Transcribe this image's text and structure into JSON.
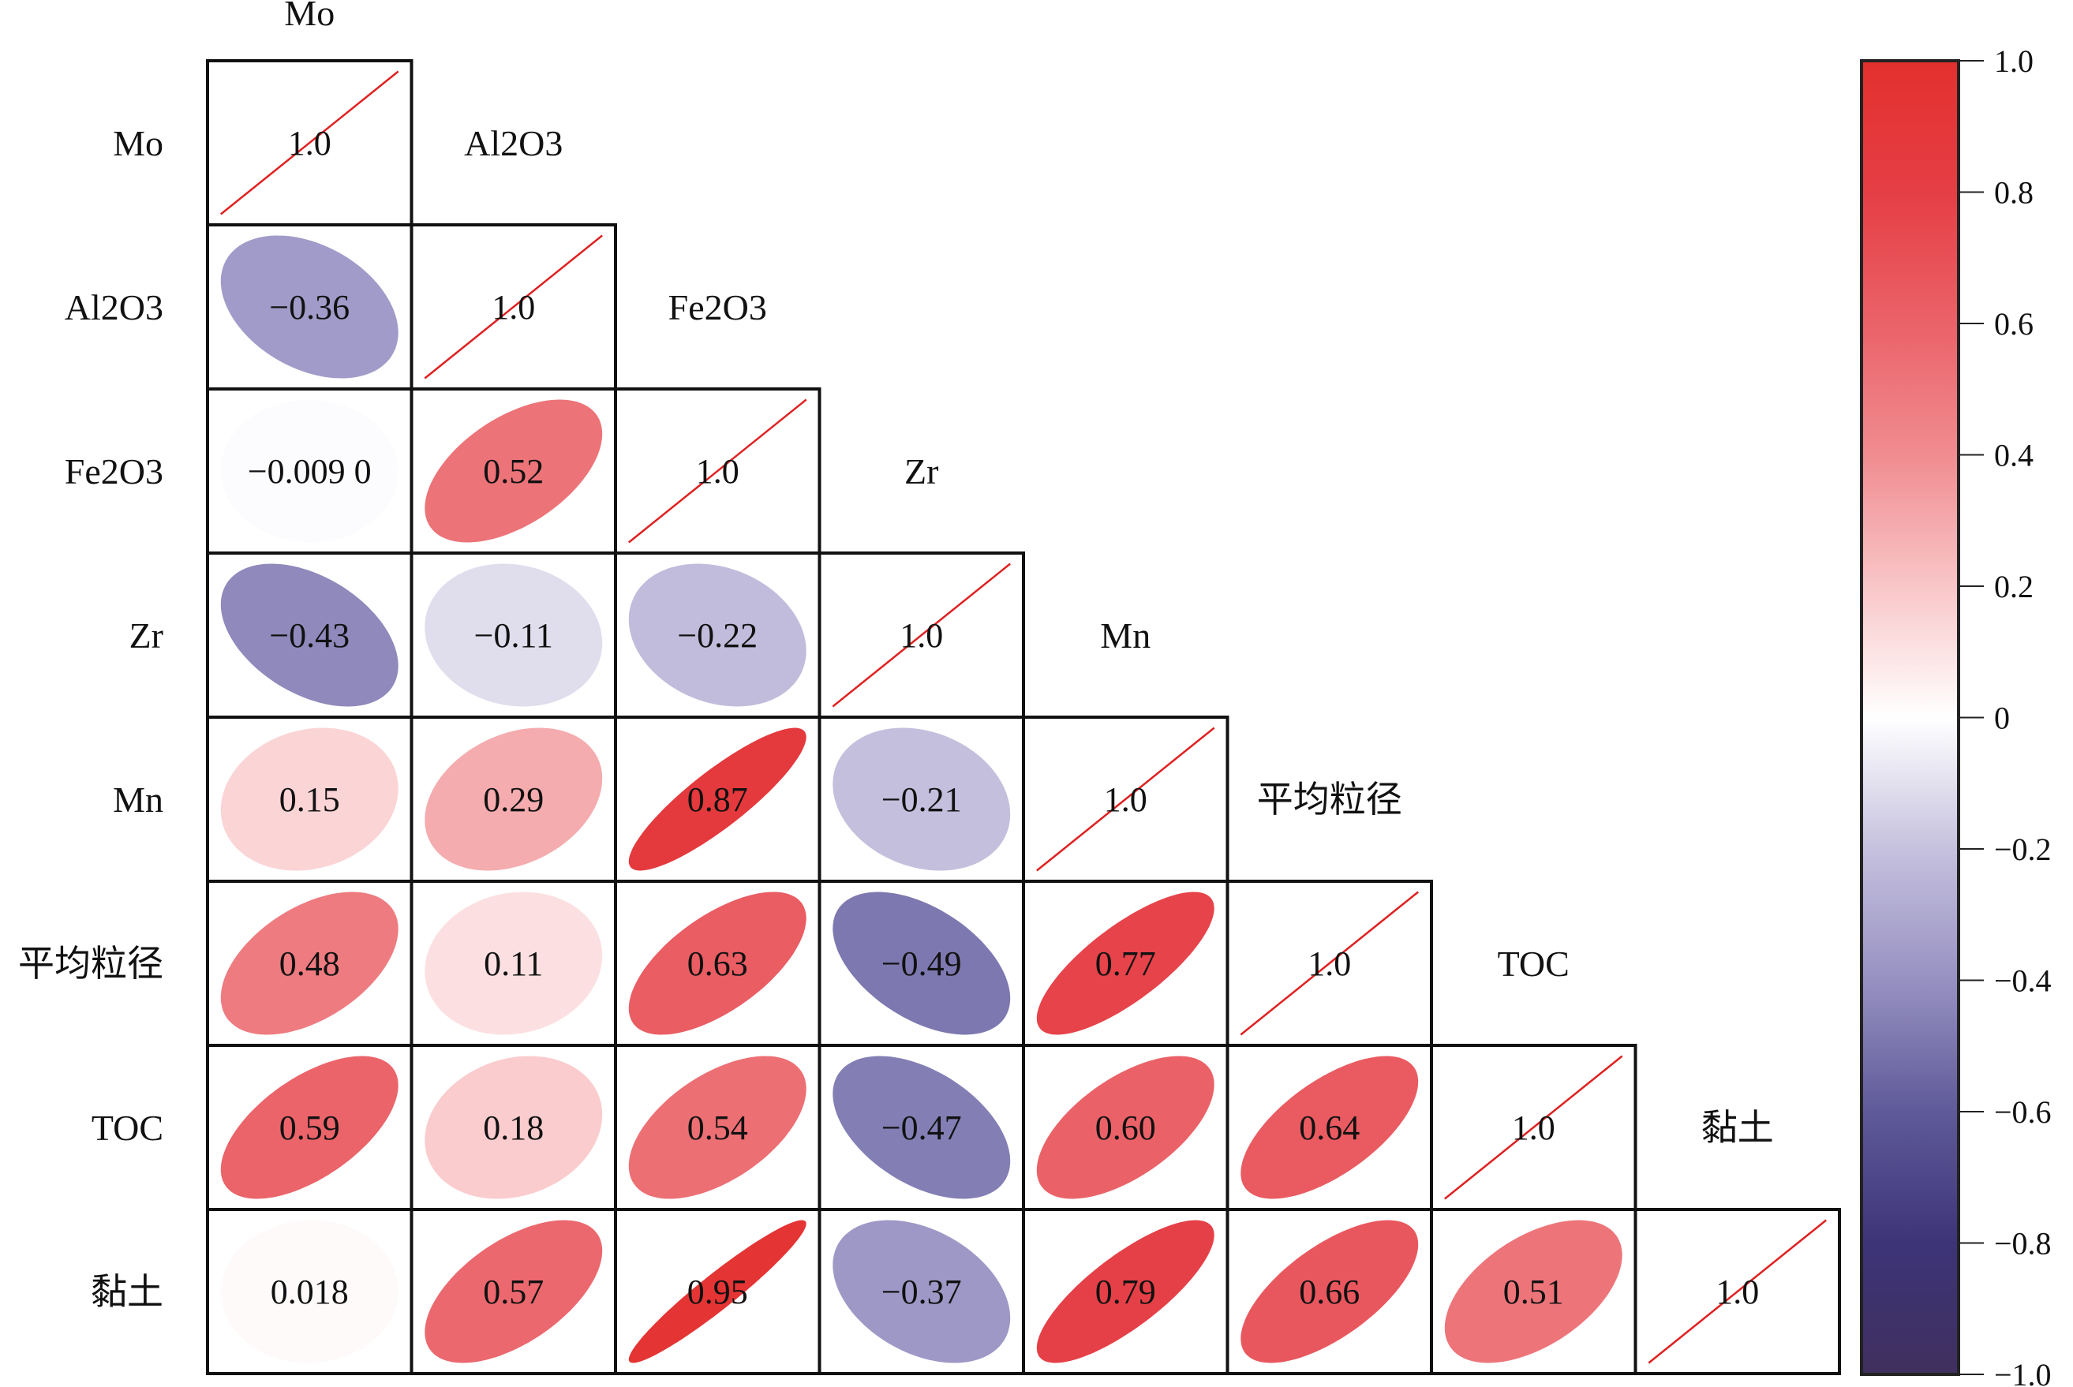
{
  "chart_data": {
    "type": "heatmap",
    "style": "correlation-ellipse-lower-triangle",
    "variables": [
      "Mo",
      "Al2O3",
      "Fe2O3",
      "Zr",
      "Mn",
      "平均粒径",
      "TOC",
      "黏土"
    ],
    "diagonal_label": "1.0",
    "matrix": [
      [
        1.0
      ],
      [
        -0.36,
        1.0
      ],
      [
        -0.009,
        0.52,
        1.0
      ],
      [
        -0.43,
        -0.11,
        -0.22,
        1.0
      ],
      [
        0.15,
        0.29,
        0.87,
        -0.21,
        1.0
      ],
      [
        0.48,
        0.11,
        0.63,
        -0.49,
        0.77,
        1.0
      ],
      [
        0.59,
        0.18,
        0.54,
        -0.47,
        0.6,
        0.64,
        1.0
      ],
      [
        0.018,
        0.57,
        0.95,
        -0.37,
        0.79,
        0.66,
        0.51,
        1.0
      ]
    ],
    "value_labels": [
      [
        "1.0"
      ],
      [
        "−0.36",
        "1.0"
      ],
      [
        "−0.009 0",
        "0.52",
        "1.0"
      ],
      [
        "−0.43",
        "−0.11",
        "−0.22",
        "1.0"
      ],
      [
        "0.15",
        "0.29",
        "0.87",
        "−0.21",
        "1.0"
      ],
      [
        "0.48",
        "0.11",
        "0.63",
        "−0.49",
        "0.77",
        "1.0"
      ],
      [
        "0.59",
        "0.18",
        "0.54",
        "−0.47",
        "0.60",
        "0.64",
        "1.0"
      ],
      [
        "0.018",
        "0.57",
        "0.95",
        "−0.37",
        "0.79",
        "0.66",
        "0.51",
        "1.0"
      ]
    ],
    "colorbar": {
      "range": [
        -1.0,
        1.0
      ],
      "ticks": [
        1.0,
        0.8,
        0.6,
        0.4,
        0.2,
        0,
        -0.2,
        -0.4,
        -0.6,
        -0.8,
        -1.0
      ],
      "tick_labels": [
        "1.0",
        "0.8",
        "0.6",
        "0.4",
        "0.2",
        "0",
        "−0.2",
        "−0.4",
        "−0.6",
        "−0.8",
        "−1.0"
      ],
      "stops": [
        {
          "value": -1.0,
          "color": "#40305e"
        },
        {
          "value": -0.8,
          "color": "#3d3478"
        },
        {
          "value": -0.6,
          "color": "#5f5a99"
        },
        {
          "value": -0.4,
          "color": "#9791c2"
        },
        {
          "value": -0.2,
          "color": "#c6c1de"
        },
        {
          "value": 0.0,
          "color": "#ffffff"
        },
        {
          "value": 0.2,
          "color": "#f9c6c8"
        },
        {
          "value": 0.4,
          "color": "#f08c90"
        },
        {
          "value": 0.6,
          "color": "#ea6268"
        },
        {
          "value": 0.8,
          "color": "#e53e45"
        },
        {
          "value": 1.0,
          "color": "#e3302e"
        }
      ]
    },
    "diagonal_line_color": "#e02020",
    "grid_color": "#111111"
  }
}
